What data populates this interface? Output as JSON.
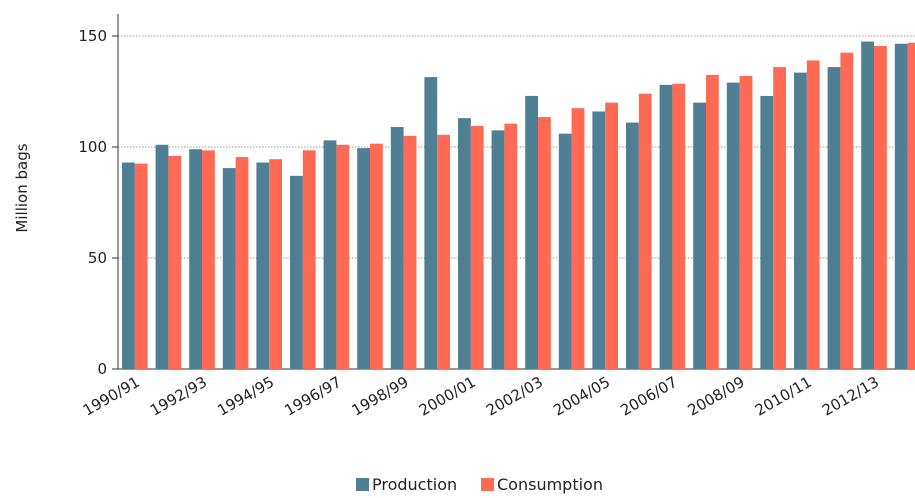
{
  "chart_data": {
    "type": "bar",
    "ylabel": "Million bags",
    "ylim": [
      0,
      160
    ],
    "yticks": [
      0,
      50,
      100,
      150
    ],
    "grid": "horizontal-dotted",
    "legend_position": "bottom-center",
    "categories": [
      "1990/91",
      "1991/92",
      "1992/93",
      "1993/94",
      "1994/95",
      "1995/96",
      "1996/97",
      "1997/98",
      "1998/99",
      "1999/00",
      "2000/01",
      "2001/02",
      "2002/03",
      "2003/04",
      "2004/05",
      "2005/06",
      "2006/07",
      "2007/08",
      "2008/09",
      "2009/10",
      "2010/11",
      "2011/12",
      "2012/13",
      "2013/14"
    ],
    "tick_labels": [
      "1990/91",
      "1992/93",
      "1994/95",
      "1996/97",
      "1998/99",
      "2000/01",
      "2002/03",
      "2004/05",
      "2006/07",
      "2008/09",
      "2010/11",
      "2012/13"
    ],
    "series": [
      {
        "name": "Production",
        "color": "#4f7f95",
        "values": [
          93,
          101,
          99,
          90.5,
          93,
          87,
          103,
          99.5,
          109,
          131.5,
          113,
          107.5,
          123,
          106,
          116,
          111,
          128,
          120,
          129,
          123,
          133.5,
          136,
          147.5,
          146.5
        ]
      },
      {
        "name": "Consumption",
        "color": "#ff6a55",
        "values": [
          92.5,
          96,
          98.5,
          95.5,
          94.5,
          98.5,
          101,
          101.5,
          105,
          105.5,
          109.5,
          110.5,
          113.5,
          117.5,
          120,
          124,
          128.5,
          132.5,
          132,
          136,
          139,
          142.5,
          145.5,
          147
        ]
      }
    ]
  }
}
